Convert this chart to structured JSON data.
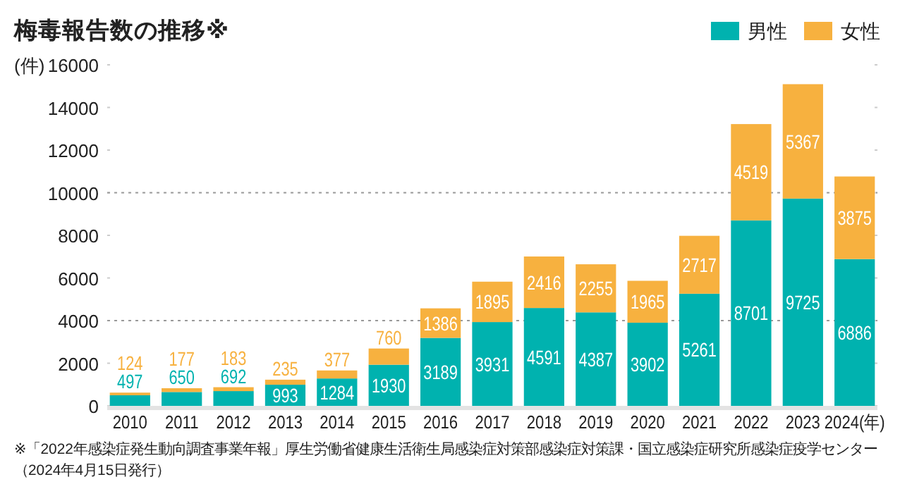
{
  "chart_data": {
    "type": "bar",
    "title": "梅毒報告数の推移※",
    "ylabel": "(件)",
    "categories": [
      "2010",
      "2011",
      "2012",
      "2013",
      "2014",
      "2015",
      "2016",
      "2017",
      "2018",
      "2019",
      "2020",
      "2021",
      "2022",
      "2023",
      "2024(年)"
    ],
    "series": [
      {
        "name": "男性",
        "color": "#00b2af",
        "values": [
          497,
          650,
          692,
          993,
          1284,
          1930,
          3189,
          3931,
          4591,
          4387,
          3902,
          5261,
          8701,
          9725,
          6886
        ]
      },
      {
        "name": "女性",
        "color": "#f7b13f",
        "values": [
          124,
          177,
          183,
          235,
          377,
          760,
          1386,
          1895,
          2416,
          2255,
          1965,
          2717,
          4519,
          5367,
          3875
        ]
      }
    ],
    "stacked": true,
    "ylim": [
      0,
      16000
    ],
    "yticks": [
      0,
      2000,
      4000,
      6000,
      8000,
      10000,
      12000,
      14000,
      16000
    ],
    "data_labels": true,
    "legend": "top right",
    "ref_lines": [
      {
        "axis": "y",
        "value": 4000,
        "line_style": "dotted",
        "color": "#999999"
      },
      {
        "axis": "y",
        "value": 10000,
        "line_style": "dotted",
        "color": "#999999"
      }
    ],
    "annotations": [
      "※「2022年感染症発生動向調査事業年報」厚生労働省健康生活衛生局感染症対策部感染症対策課・国立感染症研究所感染症疫学センター（2024年4月15日発行）"
    ]
  }
}
